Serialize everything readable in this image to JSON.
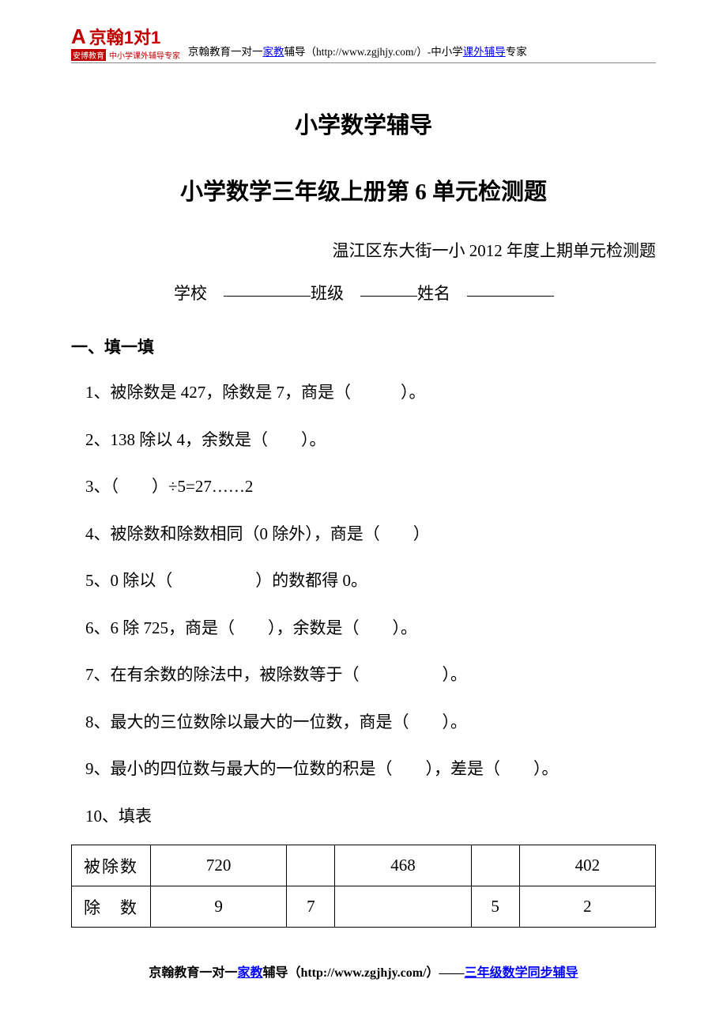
{
  "header": {
    "logo_main": "京翰1对1",
    "logo_sub_box": "安博教育",
    "logo_sub_text": "中小学课外辅导专家",
    "text_before_link1": "京翰教育一对一",
    "link1": "家教",
    "text_mid": "辅导（http://www.zgjhjy.com/）-中小学",
    "link2": "课外辅导",
    "text_after_link2": "专家"
  },
  "titles": {
    "main": "小学数学辅导",
    "sub": "小学数学三年级上册第 6 单元检测题",
    "source": "温江区东大街一小 2012 年度上期单元检测题"
  },
  "fields": {
    "school": "学校",
    "class": "班级",
    "name": "姓名"
  },
  "section1": {
    "head": "一、填一填",
    "q1": "1、被除数是 427，除数是 7，商是（　　　）。",
    "q2": "2、138 除以 4，余数是（　　）。",
    "q3": "3、（　　）÷5=27……2",
    "q4": "4、被除数和除数相同（0 除外），商是（　　）",
    "q5": "5、0 除以（　　　　　）的数都得 0。",
    "q6": "6、6 除 725，商是（　　），余数是（　　）。",
    "q7": "7、在有余数的除法中，被除数等于（　　　　　）。",
    "q8": "8、最大的三位数除以最大的一位数，商是（　　）。",
    "q9": "9、最小的四位数与最大的一位数的积是（　　），差是（　　）。",
    "q10": "10、填表"
  },
  "table": {
    "row1": {
      "label": "被除数",
      "c1": "720",
      "c2": "",
      "c3": "468",
      "c4": "",
      "c5": "402"
    },
    "row2": {
      "label_a": "除",
      "label_b": "数",
      "c1": "9",
      "c2": "7",
      "c3": "",
      "c4": "5",
      "c5": "2"
    }
  },
  "footer": {
    "text_before_link1": "京翰教育一对一",
    "link1": "家教",
    "text_mid": "辅导（http://www.zgjhjy.com/）——",
    "link2": "三年级数学同步辅导"
  },
  "colors": {
    "brand_red": "#c00000",
    "link_blue": "#0000ff",
    "text_black": "#000000",
    "border_gray": "#888888"
  }
}
